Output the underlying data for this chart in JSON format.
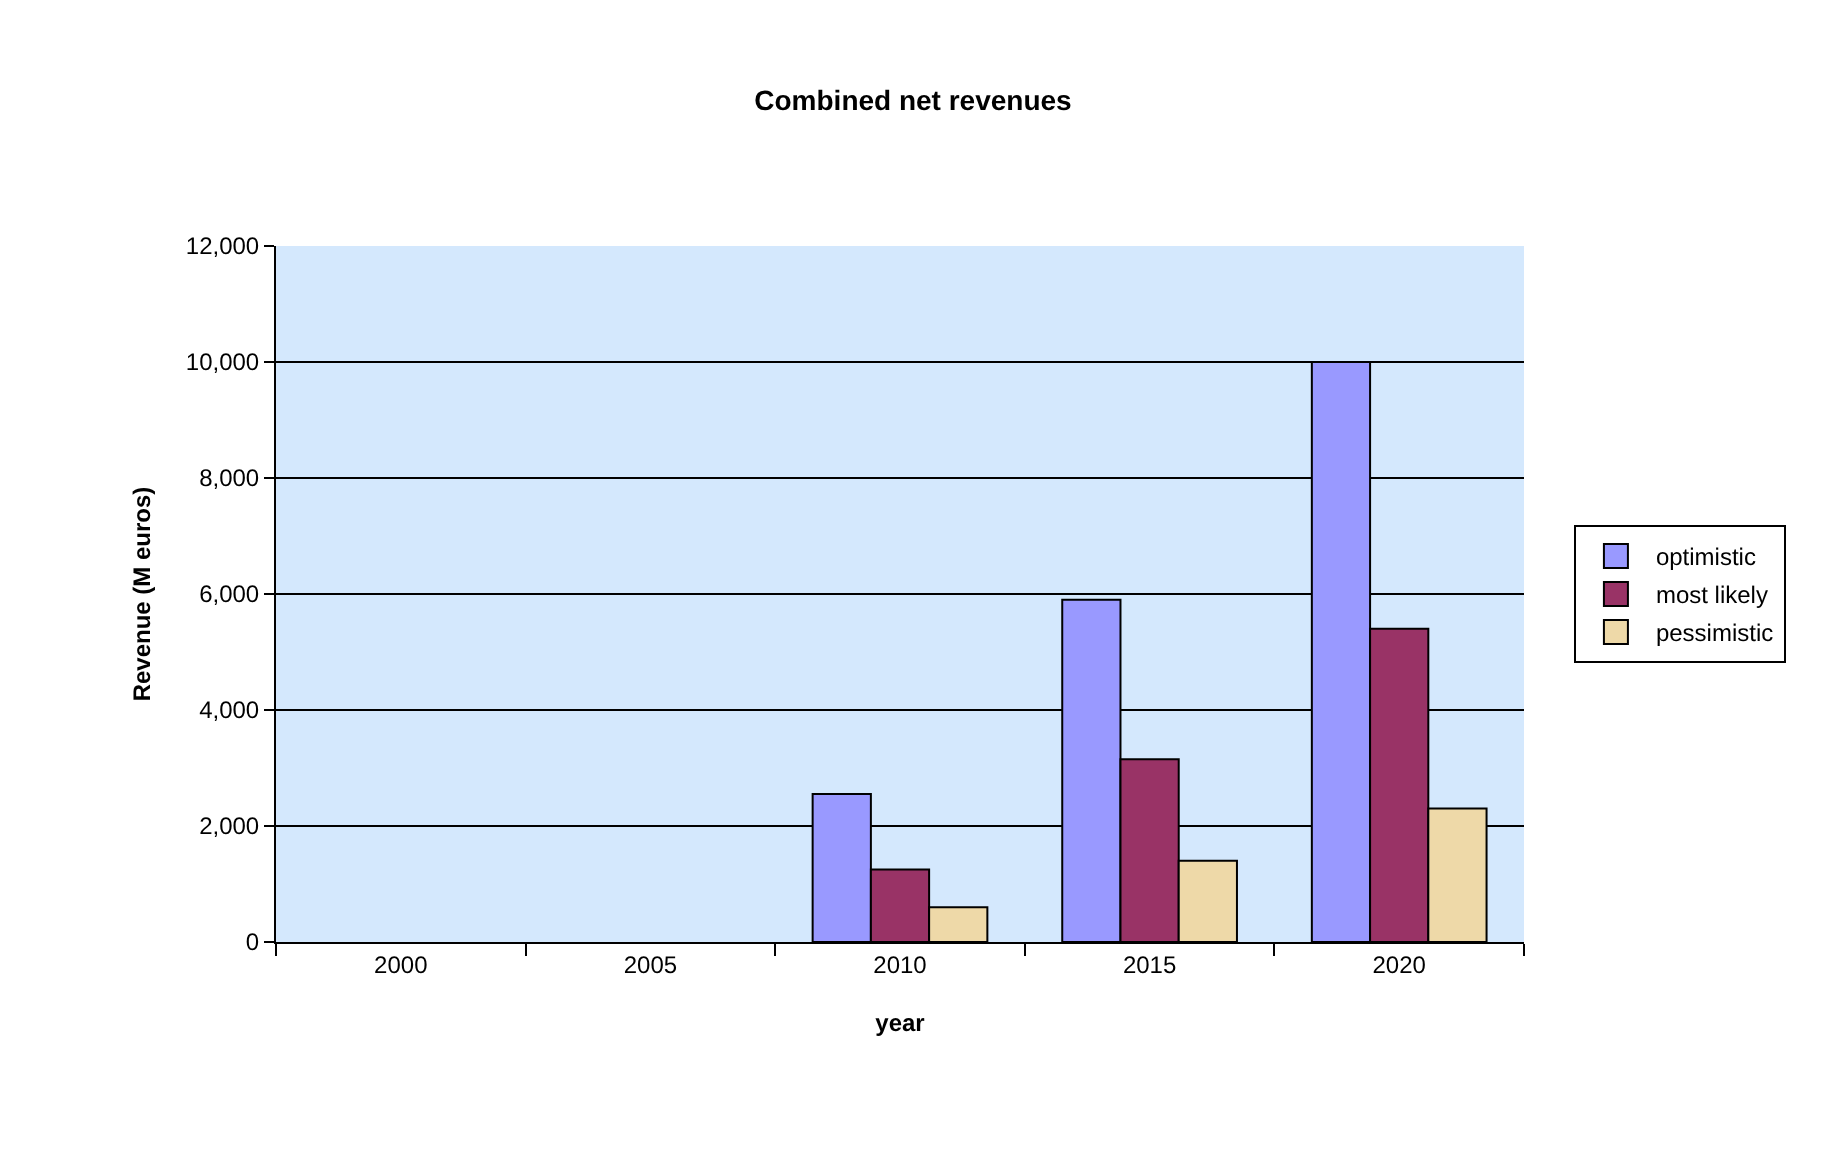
{
  "chart_data": {
    "type": "bar",
    "title": "Combined net revenues",
    "xlabel": "year",
    "ylabel": "Revenue (M euros)",
    "categories": [
      "2000",
      "2005",
      "2010",
      "2015",
      "2020"
    ],
    "series": [
      {
        "name": "optimistic",
        "color": "#9999ff",
        "values": [
          null,
          null,
          2550,
          5900,
          10000
        ]
      },
      {
        "name": "most likely",
        "color": "#993366",
        "values": [
          null,
          null,
          1250,
          3150,
          5400
        ]
      },
      {
        "name": "pessimistic",
        "color": "#eed9a8",
        "values": [
          null,
          null,
          600,
          1400,
          2300
        ]
      }
    ],
    "ylim": [
      0,
      12000
    ],
    "yticks": [
      0,
      {
        "value": 2000,
        "label": "2,000"
      },
      {
        "value": 4000,
        "label": "4,000"
      },
      {
        "value": 6000,
        "label": "6,000"
      },
      {
        "value": 8000,
        "label": "8,000"
      },
      {
        "value": 10000,
        "label": "10,000"
      },
      {
        "value": 12000,
        "label": "12,000"
      }
    ],
    "grid": "y",
    "legend": "right"
  }
}
